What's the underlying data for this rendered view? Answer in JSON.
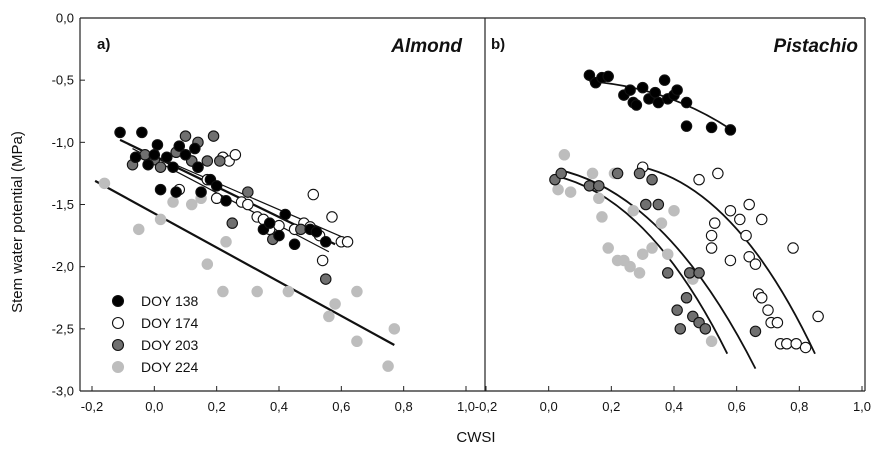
{
  "chart_data": {
    "type": "scatter",
    "ylabel": "Stem water potential (MPa)",
    "xlabel": "CWSI",
    "ylim": [
      -3.0,
      0.0
    ],
    "y_ticks": [
      "0,0",
      "-0,5",
      "-1,0",
      "-1,5",
      "-2,0",
      "-2,5",
      "-3,0"
    ],
    "x_ticks": [
      "-0,2",
      "0,0",
      "0,2",
      "0,4",
      "0,6",
      "0,8",
      "1,0"
    ],
    "legend": [
      {
        "name": "DOY 138",
        "color": "#000000"
      },
      {
        "name": "DOY 174",
        "color": "#ffffff"
      },
      {
        "name": "DOY 203",
        "color": "#707070"
      },
      {
        "name": "DOY 224",
        "color": "#bdbdbd"
      }
    ],
    "panels": [
      {
        "letter": "a)",
        "title": "Almond",
        "xlim": [
          -0.2,
          1.0
        ],
        "series": [
          {
            "name": "DOY 138",
            "points": [
              [
                -0.11,
                -0.92
              ],
              [
                -0.06,
                -1.12
              ],
              [
                -0.04,
                -0.92
              ],
              [
                -0.02,
                -1.18
              ],
              [
                0.0,
                -1.1
              ],
              [
                0.01,
                -1.02
              ],
              [
                0.02,
                -1.38
              ],
              [
                0.04,
                -1.12
              ],
              [
                0.06,
                -1.2
              ],
              [
                0.07,
                -1.4
              ],
              [
                0.08,
                -1.03
              ],
              [
                0.1,
                -1.1
              ],
              [
                0.13,
                -1.05
              ],
              [
                0.14,
                -1.2
              ],
              [
                0.15,
                -1.4
              ],
              [
                0.18,
                -1.3
              ],
              [
                0.2,
                -1.35
              ],
              [
                0.23,
                -1.47
              ],
              [
                0.35,
                -1.7
              ],
              [
                0.37,
                -1.65
              ],
              [
                0.4,
                -1.75
              ],
              [
                0.42,
                -1.58
              ],
              [
                0.45,
                -1.82
              ],
              [
                0.5,
                -1.7
              ],
              [
                0.52,
                -1.72
              ],
              [
                0.55,
                -1.8
              ]
            ]
          },
          {
            "name": "DOY 174",
            "points": [
              [
                0.08,
                -1.38
              ],
              [
                0.12,
                -1.15
              ],
              [
                0.14,
                -1.2
              ],
              [
                0.17,
                -1.3
              ],
              [
                0.2,
                -1.45
              ],
              [
                0.22,
                -1.12
              ],
              [
                0.24,
                -1.15
              ],
              [
                0.26,
                -1.1
              ],
              [
                0.28,
                -1.48
              ],
              [
                0.3,
                -1.5
              ],
              [
                0.33,
                -1.6
              ],
              [
                0.35,
                -1.62
              ],
              [
                0.37,
                -1.7
              ],
              [
                0.4,
                -1.67
              ],
              [
                0.45,
                -1.7
              ],
              [
                0.48,
                -1.65
              ],
              [
                0.5,
                -1.68
              ],
              [
                0.51,
                -1.42
              ],
              [
                0.53,
                -1.75
              ],
              [
                0.54,
                -1.95
              ],
              [
                0.57,
                -1.6
              ],
              [
                0.6,
                -1.8
              ],
              [
                0.62,
                -1.8
              ]
            ]
          },
          {
            "name": "DOY 203",
            "points": [
              [
                -0.07,
                -1.18
              ],
              [
                -0.03,
                -1.1
              ],
              [
                0.0,
                -1.14
              ],
              [
                0.02,
                -1.2
              ],
              [
                0.07,
                -1.08
              ],
              [
                0.1,
                -0.95
              ],
              [
                0.12,
                -1.15
              ],
              [
                0.14,
                -1.0
              ],
              [
                0.17,
                -1.15
              ],
              [
                0.19,
                -0.95
              ],
              [
                0.21,
                -1.15
              ],
              [
                0.25,
                -1.65
              ],
              [
                0.3,
                -1.4
              ],
              [
                0.38,
                -1.78
              ],
              [
                0.47,
                -1.7
              ],
              [
                0.55,
                -2.1
              ]
            ]
          },
          {
            "name": "DOY 224",
            "points": [
              [
                -0.16,
                -1.33
              ],
              [
                -0.05,
                -1.7
              ],
              [
                0.02,
                -1.62
              ],
              [
                0.06,
                -1.48
              ],
              [
                0.12,
                -1.5
              ],
              [
                0.15,
                -1.45
              ],
              [
                0.17,
                -1.98
              ],
              [
                0.22,
                -2.2
              ],
              [
                0.23,
                -1.8
              ],
              [
                0.33,
                -2.2
              ],
              [
                0.43,
                -2.2
              ],
              [
                0.58,
                -2.3
              ],
              [
                0.56,
                -2.4
              ],
              [
                0.65,
                -2.2
              ],
              [
                0.65,
                -2.6
              ],
              [
                0.75,
                -2.8
              ],
              [
                0.77,
                -2.5
              ]
            ]
          }
        ],
        "fits": [
          {
            "x": [
              -0.11,
              0.58
            ],
            "y": [
              -0.98,
              -1.82
            ],
            "stroke": 2.2
          },
          {
            "x": [
              -0.08,
              0.62
            ],
            "y": [
              -1.02,
              -1.78
            ],
            "stroke": 1.2
          },
          {
            "x": [
              -0.07,
              0.56
            ],
            "y": [
              -1.05,
              -1.88
            ],
            "stroke": 1.2
          },
          {
            "x": [
              -0.19,
              0.77
            ],
            "y": [
              -1.31,
              -2.63
            ],
            "stroke": 2.2
          }
        ]
      },
      {
        "letter": "b)",
        "title": "Pistachio",
        "xlim": [
          -0.2,
          1.0
        ],
        "series": [
          {
            "name": "DOY 138",
            "points": [
              [
                0.13,
                -0.46
              ],
              [
                0.15,
                -0.52
              ],
              [
                0.17,
                -0.48
              ],
              [
                0.19,
                -0.47
              ],
              [
                0.24,
                -0.62
              ],
              [
                0.26,
                -0.58
              ],
              [
                0.27,
                -0.68
              ],
              [
                0.28,
                -0.7
              ],
              [
                0.3,
                -0.56
              ],
              [
                0.32,
                -0.65
              ],
              [
                0.34,
                -0.6
              ],
              [
                0.35,
                -0.68
              ],
              [
                0.37,
                -0.5
              ],
              [
                0.38,
                -0.65
              ],
              [
                0.4,
                -0.62
              ],
              [
                0.41,
                -0.58
              ],
              [
                0.44,
                -0.68
              ],
              [
                0.44,
                -0.87
              ],
              [
                0.52,
                -0.88
              ],
              [
                0.58,
                -0.9
              ]
            ]
          },
          {
            "name": "DOY 174",
            "points": [
              [
                0.3,
                -1.2
              ],
              [
                0.48,
                -1.3
              ],
              [
                0.52,
                -1.75
              ],
              [
                0.52,
                -1.85
              ],
              [
                0.53,
                -1.65
              ],
              [
                0.54,
                -1.25
              ],
              [
                0.58,
                -1.55
              ],
              [
                0.58,
                -1.95
              ],
              [
                0.61,
                -1.62
              ],
              [
                0.63,
                -1.75
              ],
              [
                0.64,
                -1.5
              ],
              [
                0.64,
                -1.92
              ],
              [
                0.66,
                -1.98
              ],
              [
                0.67,
                -2.22
              ],
              [
                0.68,
                -1.62
              ],
              [
                0.68,
                -2.25
              ],
              [
                0.7,
                -2.35
              ],
              [
                0.71,
                -2.45
              ],
              [
                0.73,
                -2.45
              ],
              [
                0.74,
                -2.62
              ],
              [
                0.76,
                -2.62
              ],
              [
                0.78,
                -1.85
              ],
              [
                0.79,
                -2.62
              ],
              [
                0.82,
                -2.65
              ],
              [
                0.86,
                -2.4
              ]
            ]
          },
          {
            "name": "DOY 203",
            "points": [
              [
                0.02,
                -1.3
              ],
              [
                0.04,
                -1.25
              ],
              [
                0.13,
                -1.35
              ],
              [
                0.16,
                -1.35
              ],
              [
                0.22,
                -1.25
              ],
              [
                0.29,
                -1.25
              ],
              [
                0.31,
                -1.5
              ],
              [
                0.33,
                -1.3
              ],
              [
                0.35,
                -1.5
              ],
              [
                0.38,
                -2.05
              ],
              [
                0.41,
                -2.35
              ],
              [
                0.42,
                -2.5
              ],
              [
                0.44,
                -2.25
              ],
              [
                0.45,
                -2.05
              ],
              [
                0.46,
                -2.4
              ],
              [
                0.48,
                -2.05
              ],
              [
                0.48,
                -2.45
              ],
              [
                0.5,
                -2.5
              ],
              [
                0.66,
                -2.52
              ]
            ]
          },
          {
            "name": "DOY 224",
            "points": [
              [
                0.03,
                -1.38
              ],
              [
                0.05,
                -1.1
              ],
              [
                0.07,
                -1.4
              ],
              [
                0.14,
                -1.25
              ],
              [
                0.16,
                -1.45
              ],
              [
                0.17,
                -1.6
              ],
              [
                0.19,
                -1.85
              ],
              [
                0.21,
                -1.25
              ],
              [
                0.22,
                -1.95
              ],
              [
                0.24,
                -1.95
              ],
              [
                0.26,
                -2.0
              ],
              [
                0.27,
                -1.55
              ],
              [
                0.29,
                -2.05
              ],
              [
                0.3,
                -1.9
              ],
              [
                0.33,
                -1.85
              ],
              [
                0.36,
                -1.65
              ],
              [
                0.38,
                -1.9
              ],
              [
                0.4,
                -1.55
              ],
              [
                0.46,
                -2.1
              ],
              [
                0.52,
                -2.6
              ]
            ]
          }
        ],
        "fits": [
          {
            "x": [
              0.13,
              0.59
            ],
            "y": [
              -0.51,
              -0.91
            ],
            "curve": "quadratic",
            "stroke": 1.8
          },
          {
            "x": [
              0.3,
              0.85
            ],
            "y": [
              -1.2,
              -2.7
            ],
            "curve": "quadratic",
            "stroke": 1.8
          },
          {
            "x": [
              0.03,
              0.66
            ],
            "y": [
              -1.22,
              -2.82
            ],
            "curve": "quadratic",
            "stroke": 1.8
          },
          {
            "x": [
              0.02,
              0.57
            ],
            "y": [
              -1.27,
              -2.7
            ],
            "curve": "quadratic",
            "stroke": 1.8
          }
        ]
      }
    ]
  }
}
